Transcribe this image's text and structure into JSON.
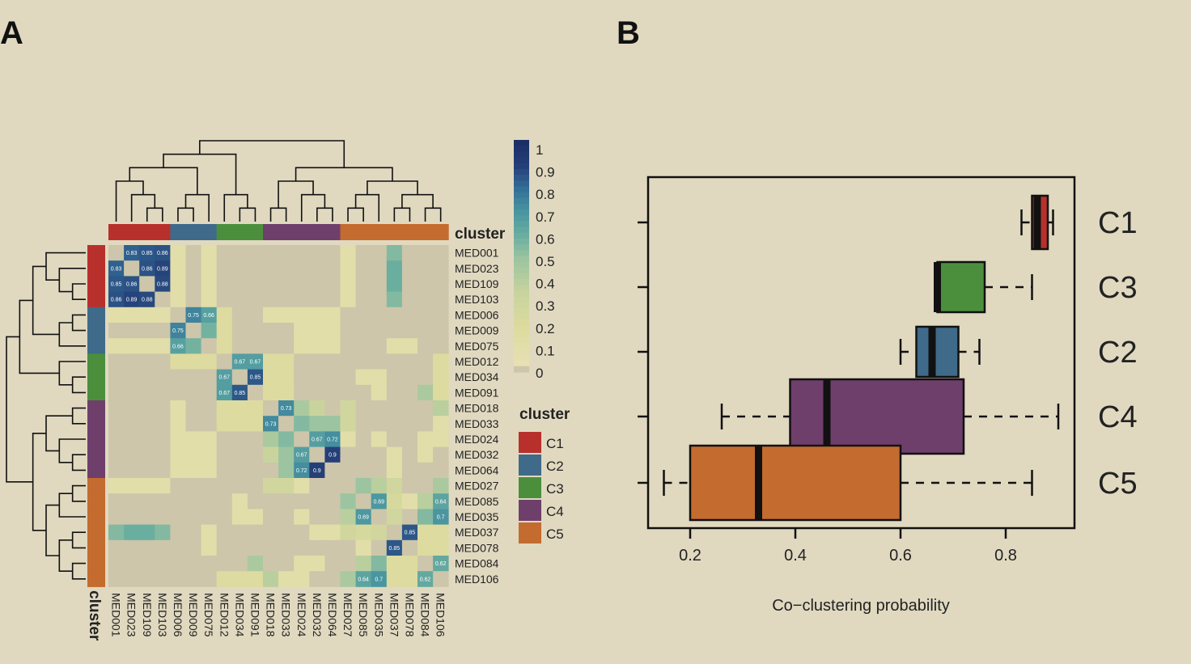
{
  "panels": {
    "a": "A",
    "b": "B"
  },
  "heatmap": {
    "samples": [
      "MED001",
      "MED023",
      "MED109",
      "MED103",
      "MED006",
      "MED009",
      "MED075",
      "MED012",
      "MED034",
      "MED091",
      "MED018",
      "MED033",
      "MED024",
      "MED032",
      "MED064",
      "MED027",
      "MED085",
      "MED035",
      "MED037",
      "MED078",
      "MED084",
      "MED106"
    ],
    "cluster_of_sample": [
      "C1",
      "C1",
      "C1",
      "C1",
      "C2",
      "C2",
      "C2",
      "C3",
      "C3",
      "C3",
      "C4",
      "C4",
      "C4",
      "C4",
      "C4",
      "C5",
      "C5",
      "C5",
      "C5",
      "C5",
      "C5",
      "C5"
    ],
    "cluster_colors": {
      "C1": "#b8302c",
      "C2": "#3f6a8a",
      "C3": "#4b8f3d",
      "C4": "#6f3f6c",
      "C5": "#c46b30"
    },
    "annotation_label": "cluster",
    "colorbar": {
      "ticks": [
        "1",
        "0.9",
        "0.8",
        "0.7",
        "0.6",
        "0.5",
        "0.4",
        "0.3",
        "0.2",
        "0.1",
        "0"
      ],
      "stops": [
        "#1b2f66",
        "#2e5887",
        "#3a7d96",
        "#4c9d9c",
        "#7fb69a",
        "#b8cf9c",
        "#dfdfa8",
        "#e5e0b3",
        "#cdc6aa"
      ]
    },
    "legend_title": "cluster",
    "legend_items": [
      "C1",
      "C2",
      "C3",
      "C4",
      "C5"
    ],
    "labeled_values": [
      {
        "r": "MED001",
        "c": "MED023",
        "v": "0.83"
      },
      {
        "r": "MED001",
        "c": "MED109",
        "v": "0.85"
      },
      {
        "r": "MED001",
        "c": "MED103",
        "v": "0.86"
      },
      {
        "r": "MED023",
        "c": "MED001",
        "v": "0.83"
      },
      {
        "r": "MED023",
        "c": "MED109",
        "v": "0.86"
      },
      {
        "r": "MED023",
        "c": "MED103",
        "v": "0.89"
      },
      {
        "r": "MED109",
        "c": "MED001",
        "v": "0.85"
      },
      {
        "r": "MED109",
        "c": "MED023",
        "v": "0.86"
      },
      {
        "r": "MED109",
        "c": "MED103",
        "v": "0.88"
      },
      {
        "r": "MED103",
        "c": "MED001",
        "v": "0.86"
      },
      {
        "r": "MED103",
        "c": "MED023",
        "v": "0.89"
      },
      {
        "r": "MED103",
        "c": "MED109",
        "v": "0.88"
      },
      {
        "r": "MED006",
        "c": "MED009",
        "v": "0.75"
      },
      {
        "r": "MED006",
        "c": "MED075",
        "v": "0.66"
      },
      {
        "r": "MED009",
        "c": "MED006",
        "v": "0.75"
      },
      {
        "r": "MED075",
        "c": "MED006",
        "v": "0.66"
      },
      {
        "r": "MED012",
        "c": "MED034",
        "v": "0.67"
      },
      {
        "r": "MED012",
        "c": "MED091",
        "v": "0.67"
      },
      {
        "r": "MED034",
        "c": "MED012",
        "v": "0.67"
      },
      {
        "r": "MED034",
        "c": "MED091",
        "v": "0.85"
      },
      {
        "r": "MED091",
        "c": "MED012",
        "v": "0.67"
      },
      {
        "r": "MED091",
        "c": "MED034",
        "v": "0.85"
      },
      {
        "r": "MED018",
        "c": "MED033",
        "v": "0.73"
      },
      {
        "r": "MED033",
        "c": "MED018",
        "v": "0.73"
      },
      {
        "r": "MED024",
        "c": "MED032",
        "v": "0.67"
      },
      {
        "r": "MED024",
        "c": "MED064",
        "v": "0.72"
      },
      {
        "r": "MED032",
        "c": "MED024",
        "v": "0.67"
      },
      {
        "r": "MED032",
        "c": "MED064",
        "v": "0.9"
      },
      {
        "r": "MED064",
        "c": "MED024",
        "v": "0.72"
      },
      {
        "r": "MED064",
        "c": "MED032",
        "v": "0.9"
      },
      {
        "r": "MED085",
        "c": "MED035",
        "v": "0.69"
      },
      {
        "r": "MED085",
        "c": "MED106",
        "v": "0.64"
      },
      {
        "r": "MED035",
        "c": "MED085",
        "v": "0.69"
      },
      {
        "r": "MED035",
        "c": "MED106",
        "v": "0.7"
      },
      {
        "r": "MED037",
        "c": "MED078",
        "v": "0.85"
      },
      {
        "r": "MED078",
        "c": "MED037",
        "v": "0.85"
      },
      {
        "r": "MED084",
        "c": "MED106",
        "v": "0.62"
      },
      {
        "r": "MED106",
        "c": "MED085",
        "v": "0.64"
      },
      {
        "r": "MED106",
        "c": "MED035",
        "v": "0.7"
      },
      {
        "r": "MED106",
        "c": "MED084",
        "v": "0.62"
      }
    ]
  },
  "chart_data": {
    "type": "boxplot",
    "xlabel": "Co−clustering probability",
    "xlim": [
      0.15,
      0.92
    ],
    "xticks": [
      "0.2",
      "0.4",
      "0.6",
      "0.8"
    ],
    "categories": [
      "C1",
      "C3",
      "C2",
      "C4",
      "C5"
    ],
    "series": [
      {
        "name": "C1",
        "color": "#b8302c",
        "whisker_low": 0.83,
        "q1": 0.85,
        "median": 0.86,
        "q3": 0.88,
        "whisker_high": 0.89
      },
      {
        "name": "C3",
        "color": "#4b8f3d",
        "whisker_low": 0.67,
        "q1": 0.67,
        "median": 0.67,
        "q3": 0.76,
        "whisker_high": 0.85
      },
      {
        "name": "C2",
        "color": "#3f6a8a",
        "whisker_low": 0.6,
        "q1": 0.63,
        "median": 0.66,
        "q3": 0.71,
        "whisker_high": 0.75
      },
      {
        "name": "C4",
        "color": "#6f3f6c",
        "whisker_low": 0.26,
        "q1": 0.39,
        "median": 0.46,
        "q3": 0.72,
        "whisker_high": 0.9
      },
      {
        "name": "C5",
        "color": "#c46b30",
        "whisker_low": 0.15,
        "q1": 0.2,
        "median": 0.33,
        "q3": 0.6,
        "whisker_high": 0.85
      }
    ]
  }
}
